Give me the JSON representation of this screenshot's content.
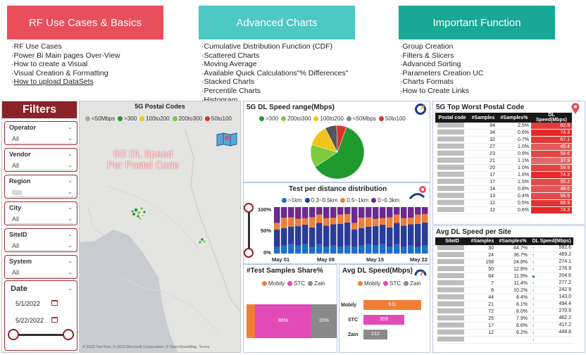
{
  "banners": [
    {
      "title": "RF Use Cases & Basics",
      "items": [
        "RF Use Cases",
        "Power Bi Main pages Over-View",
        "How to create a Visual",
        "Visual Creation & Formatting",
        "How to upload DataSets"
      ]
    },
    {
      "title": "Advanced Charts",
      "items": [
        "Cumulative Distribution Function (CDF)",
        "Scattered Charts",
        "Moving Average",
        "Available Quick Calculations\"% Differences\"",
        "Stacked Charts",
        "Percentile Charts",
        "Histogram"
      ]
    },
    {
      "title": "Important Function",
      "items": [
        "Group Creation",
        "Filters & Slicers",
        "Advanced Sorting",
        "Parameters Creation UC",
        "Charts Formats",
        "How to Create Links"
      ]
    }
  ],
  "filters": {
    "title": "Filters",
    "slicers": [
      {
        "label": "Operator",
        "value": "All"
      },
      {
        "label": "Vendor",
        "value": "All"
      },
      {
        "label": "Region",
        "value": ""
      },
      {
        "label": "City",
        "value": "All"
      },
      {
        "label": "SiteID",
        "value": "All"
      },
      {
        "label": "System",
        "value": "All"
      }
    ],
    "date": {
      "label": "Date",
      "start": "5/1/2022",
      "end": "5/22/2022"
    }
  },
  "map": {
    "title": "5G Postal Codes",
    "legend": [
      "<50Mbps",
      ">300",
      "100to200",
      "200to300",
      "50to100"
    ],
    "overlay_line1": "5G DL Speed",
    "overlay_line2": "Per Postal Code",
    "footer": "© 2023 TomTom, © 2023 Microsoft Corporation, © OpenStreetMap, Terms"
  },
  "colors": {
    "lt50": "#a8a8a8",
    "gt300": "#1f9a2e",
    "r100to200": "#f2c318",
    "r200to300": "#7ccc3d",
    "r50to100": "#e0302d",
    "mobily": "#f07f36",
    "stc": "#e04bb7",
    "zain": "#8a8a8a",
    "d1": "#1f6fc5",
    "d2": "#2a3c99",
    "d3": "#ee7e3a",
    "d4": "#6b2a8f"
  },
  "pie": {
    "title": "5G DL Speed range(Mbps)",
    "legend": [
      ">300",
      "200to300",
      "100to200",
      "<50Mbps",
      "50to100"
    ]
  },
  "dist": {
    "title": "Test per distance distribution",
    "legend": [
      ">1km",
      "0.3~0.5km",
      "0.5~1km",
      "0~0.3km"
    ],
    "y_ticks": [
      "100%",
      "50%",
      "0%"
    ],
    "x_labels": [
      "May 01",
      "May 08",
      "May 15",
      "May 22"
    ]
  },
  "share": {
    "title": "#Test Samples Share%",
    "legend": [
      "Mobily",
      "STC",
      "Zain"
    ],
    "labels": [
      "86%",
      "20%"
    ]
  },
  "avg": {
    "title": "Avg DL Speed(Mbps)",
    "legend": [
      "Mobily",
      "STC",
      "Zain"
    ],
    "rows": [
      {
        "name": "Mobily",
        "value": "511"
      },
      {
        "name": "STC",
        "value": "359"
      },
      {
        "name": "Zain",
        "value": "212"
      }
    ]
  },
  "worst": {
    "title": "5G Top Worst Postal Code",
    "headers": [
      "Postal code",
      "#Samples",
      "#Samples%",
      "DL Speed(Mbps)"
    ],
    "rows": [
      [
        "84",
        "2.5%",
        "62.9"
      ],
      [
        "34",
        "0.6%",
        "74.3"
      ],
      [
        "32",
        "0.7%",
        "67.1"
      ],
      [
        "27",
        "1.0%",
        "45.4"
      ],
      [
        "23",
        "0.9%",
        "58.6"
      ],
      [
        "21",
        "1.1%",
        "37.9"
      ],
      [
        "20",
        "1.0%",
        "59.9"
      ],
      [
        "17",
        "1.6%",
        "74.3"
      ],
      [
        "17",
        "1.5%",
        "55.2"
      ],
      [
        "14",
        "0.8%",
        "48.6"
      ],
      [
        "13",
        "0.4%",
        "56.9"
      ],
      [
        "12",
        "0.5%",
        "68.9"
      ],
      [
        "12",
        "0.6%",
        "74.3"
      ]
    ]
  },
  "site": {
    "title": "Avg DL Speed per Site",
    "headers": [
      "SiteID",
      "#Samples",
      "#Samples%",
      "DL Speed(Mbps)"
    ],
    "rows": [
      [
        "30",
        "64.7%",
        "582.6",
        "up"
      ],
      [
        "24",
        "36.7%",
        "469.2",
        "up"
      ],
      [
        "158",
        "24.8%",
        "274.1",
        "up"
      ],
      [
        "50",
        "12.8%",
        "276.9",
        "up"
      ],
      [
        "64",
        "11.9%",
        "204.6",
        "circle"
      ],
      [
        "7",
        "11.4%",
        "277.2",
        "up"
      ],
      [
        "8",
        "10.2%",
        "242.9",
        "up"
      ],
      [
        "44",
        "8.4%",
        "143.0",
        "down"
      ],
      [
        "21",
        "8.1%",
        "494.4",
        "up"
      ],
      [
        "72",
        "8.0%",
        "270.9",
        "up"
      ],
      [
        "25",
        "7.9%",
        "462.2",
        "up"
      ],
      [
        "17",
        "6.6%",
        "417.2",
        "up"
      ],
      [
        "12",
        "6.2%",
        "448.8",
        "up"
      ],
      [
        "",
        "",
        "",
        "up"
      ]
    ]
  }
}
